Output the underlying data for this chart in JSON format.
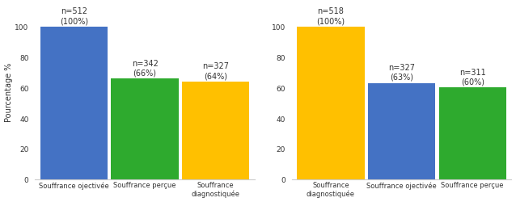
{
  "chart1": {
    "categories": [
      "Souffrance ojectivée",
      "Souffrance perçue",
      "Souffrance\ndiagnostiquée"
    ],
    "values": [
      100,
      66,
      64
    ],
    "colors": [
      "#4472C4",
      "#2EAA2E",
      "#FFC000"
    ],
    "annotations": [
      "n=512\n(100%)",
      "n=342\n(66%)",
      "n=327\n(64%)"
    ],
    "ylabel": "Pourcentage %"
  },
  "chart2": {
    "categories": [
      "Souffrance\ndiagnostiquée",
      "Souffrance ojectivée",
      "Souffrance perçue"
    ],
    "values": [
      100,
      63,
      60
    ],
    "colors": [
      "#FFC000",
      "#4472C4",
      "#2EAA2E"
    ],
    "annotations": [
      "n=518\n(100%)",
      "n=327\n(63%)",
      "n=311\n(60%)"
    ]
  },
  "ylim": [
    0,
    115
  ],
  "yticks": [
    0,
    20,
    40,
    60,
    80,
    100
  ],
  "annotation_fontsize": 7,
  "label_fontsize": 6,
  "ylabel_fontsize": 7,
  "bar_width": 0.95
}
